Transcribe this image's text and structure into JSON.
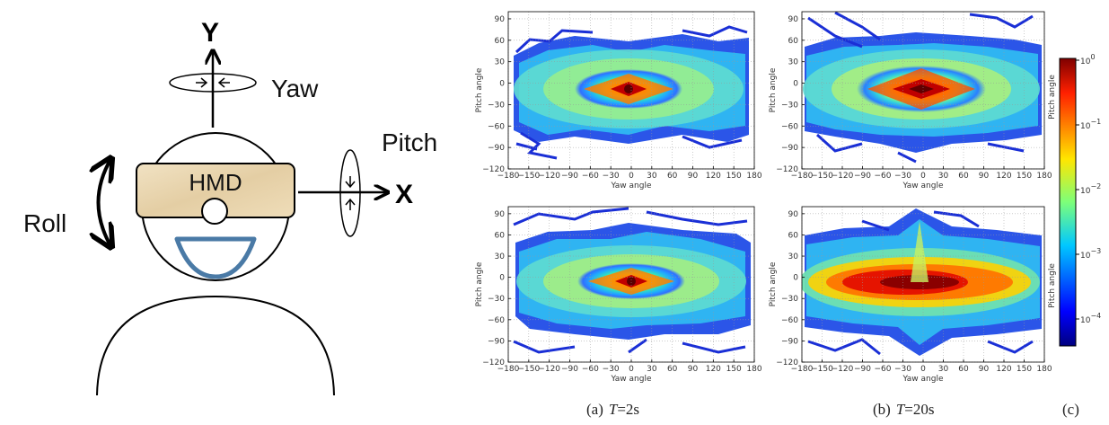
{
  "diagram": {
    "axis_y": "Y",
    "axis_x": "X",
    "yaw": "Yaw",
    "pitch": "Pitch",
    "roll": "Roll",
    "hmd": "HMD"
  },
  "colorbar": {
    "ticks": [
      "10^0",
      "10^-1",
      "10^-2",
      "10^-3",
      "10^-4"
    ],
    "label": "Pitch angle",
    "colormap": "jet"
  },
  "captions": {
    "a_prefix": "(a)",
    "a_var": "T",
    "a_val": "=2s",
    "b_prefix": "(b)",
    "b_var": "T",
    "b_val": "=20s",
    "c": "(c)"
  },
  "chart_data": [
    {
      "type": "heatmap",
      "panel": "a-top",
      "xlabel": "Yaw angle",
      "ylabel": "Pitch angle",
      "xlim": [
        -180,
        180
      ],
      "ylim": [
        -120,
        100
      ],
      "xticks": [
        -180,
        -150,
        -120,
        -90,
        -60,
        -30,
        0,
        30,
        60,
        90,
        120,
        150,
        180
      ],
      "yticks": [
        90,
        60,
        30,
        0,
        -30,
        -60,
        -90,
        -120
      ],
      "peak": {
        "x": 0,
        "y": 0,
        "level": "10^0"
      },
      "spread_x": 140,
      "spread_y": 50,
      "grid": true
    },
    {
      "type": "heatmap",
      "panel": "a-bottom",
      "xlabel": "Yaw angle",
      "ylabel": "Pitch angle",
      "xlim": [
        -180,
        180
      ],
      "ylim": [
        -120,
        100
      ],
      "xticks": [
        -180,
        -150,
        -120,
        -90,
        -60,
        -30,
        0,
        30,
        60,
        90,
        120,
        150,
        180
      ],
      "yticks": [
        90,
        60,
        30,
        0,
        -30,
        -60,
        -90,
        -120
      ],
      "peak": {
        "x": 0,
        "y": 0,
        "level": "10^0"
      },
      "spread_x": 160,
      "spread_y": 60,
      "grid": true
    },
    {
      "type": "heatmap",
      "panel": "b-top",
      "xlabel": "Yaw angle",
      "ylabel": "Pitch angle",
      "xlim": [
        -180,
        180
      ],
      "ylim": [
        -120,
        100
      ],
      "xticks": [
        -180,
        -150,
        -120,
        -90,
        -60,
        -30,
        0,
        30,
        60,
        90,
        120,
        150,
        180
      ],
      "yticks": [
        90,
        60,
        30,
        0,
        -30,
        -60,
        -90,
        -120
      ],
      "peak": {
        "x": 0,
        "y": 0,
        "level": "10^0"
      },
      "spread_x": 170,
      "spread_y": 60,
      "grid": true
    },
    {
      "type": "heatmap",
      "panel": "b-bottom",
      "xlabel": "Yaw angle",
      "ylabel": "Pitch angle",
      "xlim": [
        -180,
        180
      ],
      "ylim": [
        -120,
        100
      ],
      "xticks": [
        -180,
        -150,
        -120,
        -90,
        -60,
        -30,
        0,
        30,
        60,
        90,
        120,
        150,
        180
      ],
      "yticks": [
        90,
        60,
        30,
        0,
        -30,
        -60,
        -90,
        -120
      ],
      "peak": {
        "x": 0,
        "y": 0,
        "level": "10^0"
      },
      "spread_x": 180,
      "spread_y": 55,
      "grid": true
    }
  ]
}
